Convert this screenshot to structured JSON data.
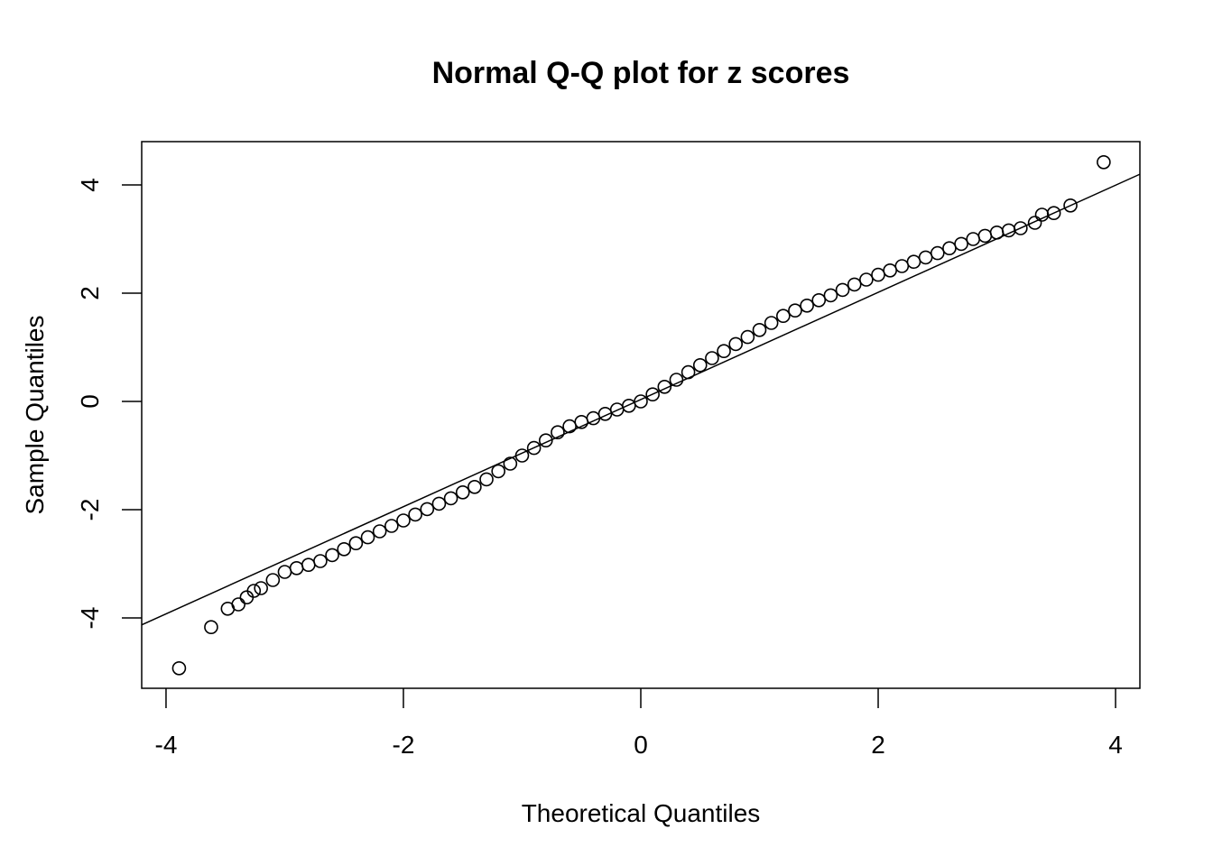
{
  "chart_data": {
    "type": "scatter",
    "title": "Normal Q-Q plot for z scores",
    "xlabel": "Theoretical Quantiles",
    "ylabel": "Sample Quantiles",
    "xlim": [
      -4.205,
      4.205
    ],
    "ylim": [
      -5.3,
      4.8
    ],
    "xticks": [
      -4,
      -2,
      0,
      2,
      4
    ],
    "yticks": [
      -4,
      -2,
      0,
      2,
      4
    ],
    "xtick_labels": [
      "-4",
      "-2",
      "0",
      "2",
      "4"
    ],
    "ytick_labels": [
      "-4",
      "-2",
      "0",
      "2",
      "4"
    ],
    "grid": false,
    "marker": "open-circle",
    "colors": {
      "points": "#000000",
      "line": "#000000",
      "background": "#ffffff"
    },
    "reference_line": {
      "intercept": 0.035,
      "slope": 0.99
    },
    "points": [
      [
        -3.89,
        -4.93
      ],
      [
        -3.62,
        -4.17
      ],
      [
        -3.48,
        -3.83
      ],
      [
        -3.39,
        -3.75
      ],
      [
        -3.32,
        -3.62
      ],
      [
        -3.26,
        -3.5
      ],
      [
        -3.2,
        -3.45
      ],
      [
        -3.1,
        -3.3
      ],
      [
        -3.0,
        -3.15
      ],
      [
        -2.9,
        -3.08
      ],
      [
        -2.8,
        -3.02
      ],
      [
        -2.7,
        -2.95
      ],
      [
        -2.6,
        -2.84
      ],
      [
        -2.5,
        -2.73
      ],
      [
        -2.4,
        -2.62
      ],
      [
        -2.3,
        -2.51
      ],
      [
        -2.2,
        -2.4
      ],
      [
        -2.1,
        -2.3
      ],
      [
        -2.0,
        -2.2
      ],
      [
        -1.9,
        -2.09
      ],
      [
        -1.8,
        -1.99
      ],
      [
        -1.7,
        -1.89
      ],
      [
        -1.6,
        -1.79
      ],
      [
        -1.5,
        -1.68
      ],
      [
        -1.4,
        -1.58
      ],
      [
        -1.3,
        -1.44
      ],
      [
        -1.2,
        -1.29
      ],
      [
        -1.1,
        -1.15
      ],
      [
        -1.0,
        -1.0
      ],
      [
        -0.9,
        -0.86
      ],
      [
        -0.8,
        -0.72
      ],
      [
        -0.7,
        -0.57
      ],
      [
        -0.6,
        -0.46
      ],
      [
        -0.5,
        -0.38
      ],
      [
        -0.4,
        -0.31
      ],
      [
        -0.3,
        -0.23
      ],
      [
        -0.2,
        -0.15
      ],
      [
        -0.1,
        -0.08
      ],
      [
        0.0,
        0.0
      ],
      [
        0.1,
        0.13
      ],
      [
        0.2,
        0.27
      ],
      [
        0.3,
        0.4
      ],
      [
        0.4,
        0.54
      ],
      [
        0.5,
        0.67
      ],
      [
        0.6,
        0.8
      ],
      [
        0.7,
        0.93
      ],
      [
        0.8,
        1.06
      ],
      [
        0.9,
        1.19
      ],
      [
        1.0,
        1.32
      ],
      [
        1.1,
        1.45
      ],
      [
        1.2,
        1.58
      ],
      [
        1.3,
        1.68
      ],
      [
        1.4,
        1.77
      ],
      [
        1.5,
        1.87
      ],
      [
        1.6,
        1.96
      ],
      [
        1.7,
        2.06
      ],
      [
        1.8,
        2.16
      ],
      [
        1.9,
        2.25
      ],
      [
        2.0,
        2.34
      ],
      [
        2.1,
        2.42
      ],
      [
        2.2,
        2.5
      ],
      [
        2.3,
        2.58
      ],
      [
        2.4,
        2.66
      ],
      [
        2.5,
        2.74
      ],
      [
        2.6,
        2.83
      ],
      [
        2.7,
        2.91
      ],
      [
        2.8,
        3.0
      ],
      [
        2.9,
        3.06
      ],
      [
        3.0,
        3.12
      ],
      [
        3.1,
        3.16
      ],
      [
        3.2,
        3.2
      ],
      [
        3.32,
        3.3
      ],
      [
        3.38,
        3.45
      ],
      [
        3.48,
        3.48
      ],
      [
        3.62,
        3.62
      ],
      [
        3.9,
        4.42
      ]
    ]
  }
}
